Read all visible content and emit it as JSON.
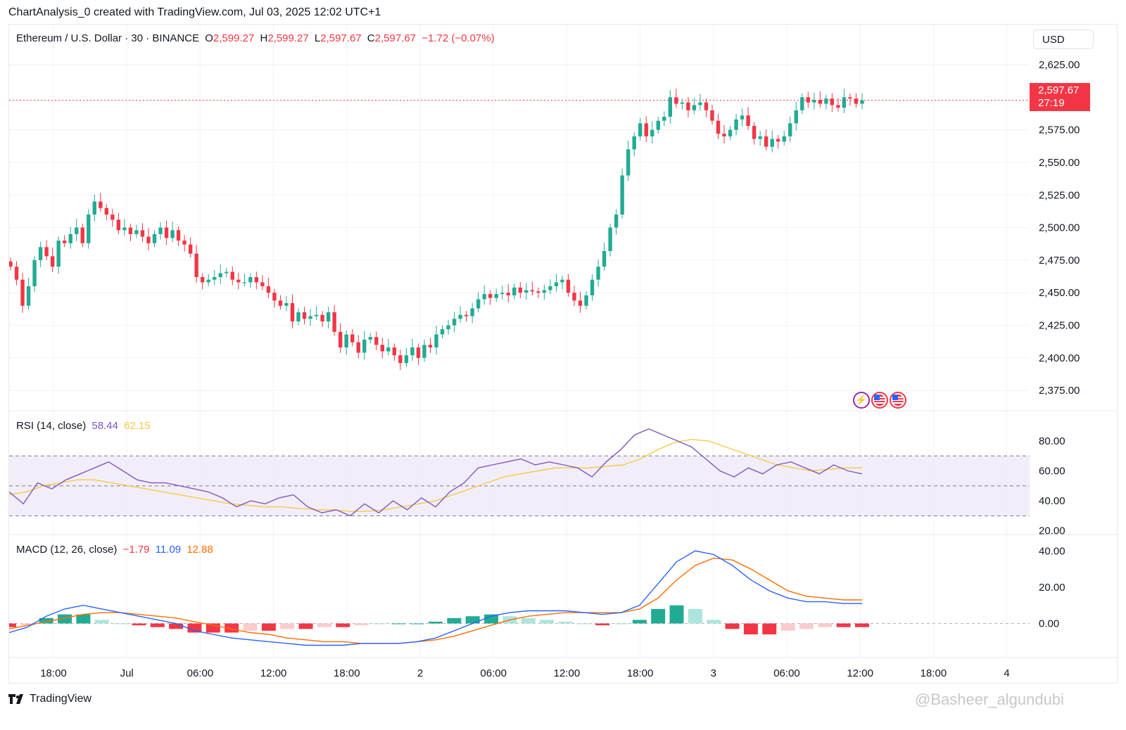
{
  "header": {
    "text": "ChartAnalysis_0 created with TradingView.com, Jul 03, 2025 12:02 UTC+1"
  },
  "symbol": {
    "name": "Ethereum / U.S. Dollar · 30 · BINANCE",
    "o_label": "O",
    "o": "2,599.27",
    "h_label": "H",
    "h": "2,599.27",
    "l_label": "L",
    "l": "2,597.67",
    "c_label": "C",
    "c": "2,597.67",
    "change": "−1.72 (−0.07%)"
  },
  "currency_button": "USD",
  "last_price": {
    "price": "2,597.67",
    "countdown": "27:19"
  },
  "rsi_legend": {
    "label": "RSI (14, close)",
    "value": "58.44",
    "ma": "62.15"
  },
  "macd_legend": {
    "label": "MACD (12, 26, close)",
    "hist": "−1.79",
    "macd": "11.09",
    "signal": "12.88"
  },
  "footer": {
    "brand": "TradingView",
    "watermark": "@Basheer_algundubi"
  },
  "colors": {
    "up": "#22ab94",
    "down": "#f23645",
    "rsi": "#7e57c2",
    "rsi_ma": "#f7c948",
    "macd": "#2962ff",
    "signal": "#ff6d00"
  },
  "chart_data": [
    {
      "type": "candlestick",
      "title": "Ethereum / U.S. Dollar · 30 · BINANCE",
      "price_axis": [
        "2,625.00",
        "2,575.00",
        "2,550.00",
        "2,525.00",
        "2,500.00",
        "2,475.00",
        "2,450.00",
        "2,425.00",
        "2,400.00",
        "2,375.00"
      ],
      "price_ticks": [
        2625,
        2575,
        2550,
        2525,
        2500,
        2475,
        2450,
        2425,
        2400,
        2375
      ],
      "ylim": [
        2360,
        2632
      ],
      "time_axis": [
        "18:00",
        "Jul",
        "06:00",
        "12:00",
        "18:00",
        "2",
        "06:00",
        "12:00",
        "18:00",
        "3",
        "06:00",
        "12:00",
        "18:00",
        "4"
      ],
      "last_price": 2597.67,
      "closes": [
        2470,
        2460,
        2440,
        2455,
        2475,
        2485,
        2478,
        2470,
        2490,
        2488,
        2495,
        2500,
        2488,
        2510,
        2520,
        2515,
        2510,
        2506,
        2498,
        2500,
        2495,
        2498,
        2493,
        2488,
        2495,
        2500,
        2492,
        2498,
        2490,
        2487,
        2480,
        2462,
        2458,
        2460,
        2462,
        2465,
        2466,
        2460,
        2458,
        2458,
        2462,
        2458,
        2455,
        2450,
        2444,
        2440,
        2442,
        2428,
        2435,
        2430,
        2432,
        2433,
        2428,
        2435,
        2420,
        2408,
        2418,
        2412,
        2404,
        2414,
        2416,
        2410,
        2405,
        2408,
        2402,
        2396,
        2402,
        2408,
        2400,
        2410,
        2408,
        2418,
        2422,
        2425,
        2430,
        2433,
        2432,
        2438,
        2445,
        2449,
        2446,
        2449,
        2450,
        2448,
        2454,
        2450,
        2452,
        2451,
        2450,
        2452,
        2455,
        2458,
        2460,
        2450,
        2444,
        2440,
        2448,
        2460,
        2470,
        2482,
        2500,
        2510,
        2540,
        2560,
        2570,
        2580,
        2570,
        2575,
        2582,
        2585,
        2600,
        2595,
        2596,
        2590,
        2594,
        2596,
        2590,
        2582,
        2572,
        2570,
        2575,
        2583,
        2586,
        2578,
        2568,
        2570,
        2562,
        2568,
        2566,
        2570,
        2580,
        2590,
        2600,
        2596,
        2598,
        2595,
        2599,
        2594,
        2592,
        2600,
        2599,
        2595,
        2597.67
      ],
      "opens_from_prev_close": true
    },
    {
      "type": "line",
      "title": "RSI (14, close)",
      "y_axis": [
        "80.00",
        "60.00",
        "40.00",
        "20.00"
      ],
      "ylim": [
        18,
        95
      ],
      "bands": [
        30,
        50,
        70
      ],
      "series": [
        {
          "name": "RSI",
          "values": [
            46,
            38,
            52,
            48,
            54,
            58,
            62,
            66,
            60,
            54,
            52,
            52,
            50,
            48,
            46,
            42,
            36,
            40,
            38,
            42,
            44,
            36,
            32,
            34,
            30,
            38,
            32,
            40,
            34,
            42,
            36,
            46,
            52,
            62,
            64,
            66,
            68,
            64,
            66,
            64,
            62,
            56,
            66,
            74,
            84,
            88,
            84,
            80,
            76,
            68,
            60,
            56,
            62,
            58,
            64,
            66,
            62,
            58,
            64,
            60,
            58
          ]
        },
        {
          "name": "MA",
          "values": [
            44,
            46,
            50,
            52,
            54,
            54,
            52,
            50,
            48,
            46,
            44,
            42,
            40,
            38,
            37,
            36,
            36,
            35,
            34,
            34,
            33,
            33,
            34,
            36,
            38,
            40,
            44,
            48,
            52,
            56,
            58,
            60,
            62,
            62,
            62,
            63,
            64,
            68,
            74,
            79,
            81,
            80,
            76,
            72,
            68,
            64,
            62,
            60,
            61,
            62,
            62
          ]
        }
      ]
    },
    {
      "type": "line",
      "title": "MACD (12, 26, close)",
      "y_axis": [
        "40.00",
        "20.00",
        "0.00"
      ],
      "ylim": [
        -18,
        44
      ],
      "series": [
        {
          "name": "MACD",
          "values": [
            -5,
            -2,
            4,
            8,
            10,
            8,
            6,
            4,
            2,
            0,
            -4,
            -6,
            -8,
            -9,
            -10,
            -11,
            -12,
            -12,
            -12,
            -11,
            -11,
            -11,
            -10,
            -8,
            -4,
            0,
            4,
            6,
            7,
            7,
            7,
            6,
            5,
            6,
            10,
            22,
            34,
            40,
            38,
            32,
            24,
            18,
            14,
            12,
            12,
            11,
            11
          ]
        },
        {
          "name": "Signal",
          "values": [
            -3,
            -1,
            1,
            3,
            5,
            6,
            6,
            5,
            4,
            3,
            1,
            -1,
            -3,
            -5,
            -6,
            -8,
            -9,
            -10,
            -10,
            -11,
            -11,
            -11,
            -10,
            -9,
            -7,
            -4,
            -1,
            2,
            4,
            5,
            6,
            6,
            6,
            6,
            8,
            14,
            24,
            32,
            36,
            35,
            30,
            24,
            18,
            15,
            14,
            13,
            13
          ]
        },
        {
          "name": "Histogram",
          "values": [
            -2,
            -1,
            3,
            5,
            5,
            2,
            0,
            -1,
            -2,
            -3,
            -5,
            -5,
            -5,
            -4,
            -4,
            -3,
            -3,
            -2,
            -2,
            -1,
            0,
            0,
            0,
            1,
            3,
            4,
            5,
            4,
            3,
            2,
            1,
            0,
            -1,
            0,
            2,
            8,
            10,
            8,
            2,
            -3,
            -6,
            -6,
            -4,
            -3,
            -2,
            -2,
            -2
          ]
        }
      ]
    }
  ]
}
